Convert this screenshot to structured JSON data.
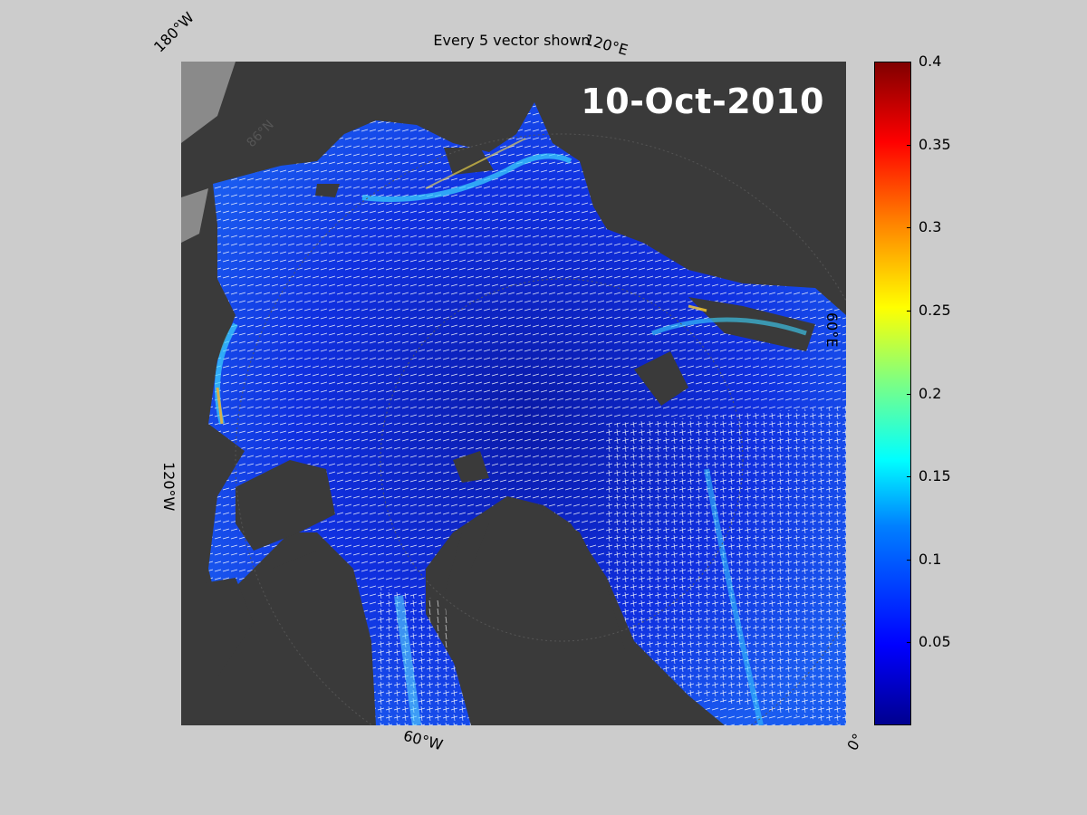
{
  "figure": {
    "title": "Every 5 vector shown",
    "date": "10-Oct-2010"
  },
  "coordinate_labels": {
    "lon_180w": "180°W",
    "lon_120e": "120°E",
    "lon_60e": "60°E",
    "lon_120w": "120°W",
    "lon_60w": "60°W",
    "lon_0": "0°",
    "lat_86n": "86°N"
  },
  "colorbar": {
    "min": 0,
    "max": 0.4,
    "ticks": [
      "0.4",
      "0.35",
      "0.3",
      "0.25",
      "0.2",
      "0.15",
      "0.1",
      "0.05"
    ],
    "tick_values": [
      0.4,
      0.35,
      0.3,
      0.25,
      0.2,
      0.15,
      0.1,
      0.05
    ],
    "colormap": "jet",
    "colors": {
      "low": "#00008f",
      "mid": "#00ffff",
      "high": "#800000"
    }
  },
  "colors": {
    "background": "#cccccc",
    "land": "#3a3a3a",
    "ice_shelf": "#8a8a8a",
    "ocean_low": "#1010d0",
    "vectors": "#ffffff"
  }
}
